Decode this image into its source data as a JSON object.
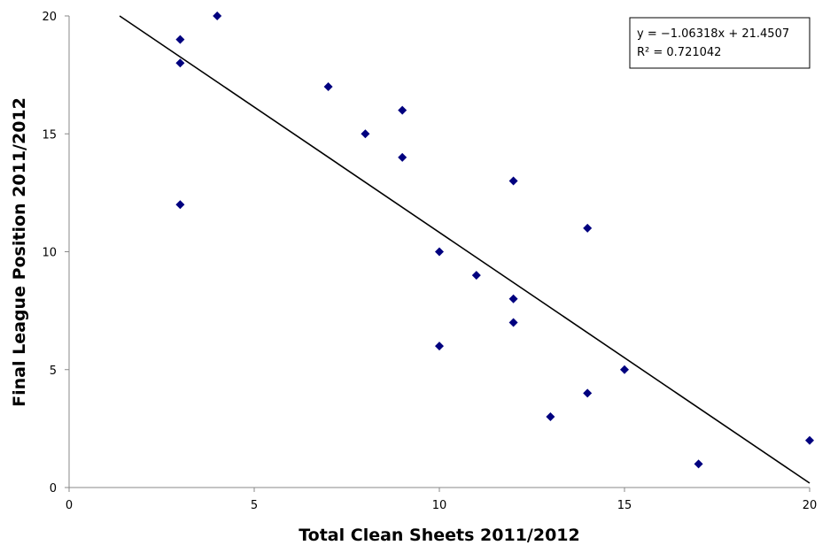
{
  "chart_data": {
    "type": "scatter",
    "title": "",
    "xlabel": "Total Clean Sheets 2011/2012",
    "ylabel": "Final League Position 2011/2012",
    "xlim": [
      0,
      20
    ],
    "ylim": [
      0,
      20
    ],
    "x_ticks": [
      0,
      5,
      10,
      15,
      20
    ],
    "y_ticks": [
      0,
      5,
      10,
      15,
      20
    ],
    "x_tick_labels": [
      "0",
      "5",
      "10",
      "15",
      "20"
    ],
    "y_tick_labels": [
      "0",
      "5",
      "10",
      "15",
      "20"
    ],
    "grid": false,
    "marker": "diamond",
    "marker_color": "#00007f",
    "points": [
      {
        "x": 4,
        "y": 20
      },
      {
        "x": 3,
        "y": 19
      },
      {
        "x": 3,
        "y": 18
      },
      {
        "x": 7,
        "y": 17
      },
      {
        "x": 9,
        "y": 16
      },
      {
        "x": 8,
        "y": 15
      },
      {
        "x": 9,
        "y": 14
      },
      {
        "x": 12,
        "y": 13
      },
      {
        "x": 3,
        "y": 12
      },
      {
        "x": 14,
        "y": 11
      },
      {
        "x": 10,
        "y": 10
      },
      {
        "x": 11,
        "y": 9
      },
      {
        "x": 12,
        "y": 8
      },
      {
        "x": 12,
        "y": 7
      },
      {
        "x": 10,
        "y": 6
      },
      {
        "x": 15,
        "y": 5
      },
      {
        "x": 14,
        "y": 4
      },
      {
        "x": 13,
        "y": 3
      },
      {
        "x": 20,
        "y": 2
      },
      {
        "x": 17,
        "y": 1
      }
    ],
    "trendline": {
      "slope": -1.06318,
      "intercept": 21.4507,
      "equation_label": "y = −1.06318x + 21.4507",
      "r2_label": "R² = 0.721042",
      "color": "#000000"
    }
  }
}
